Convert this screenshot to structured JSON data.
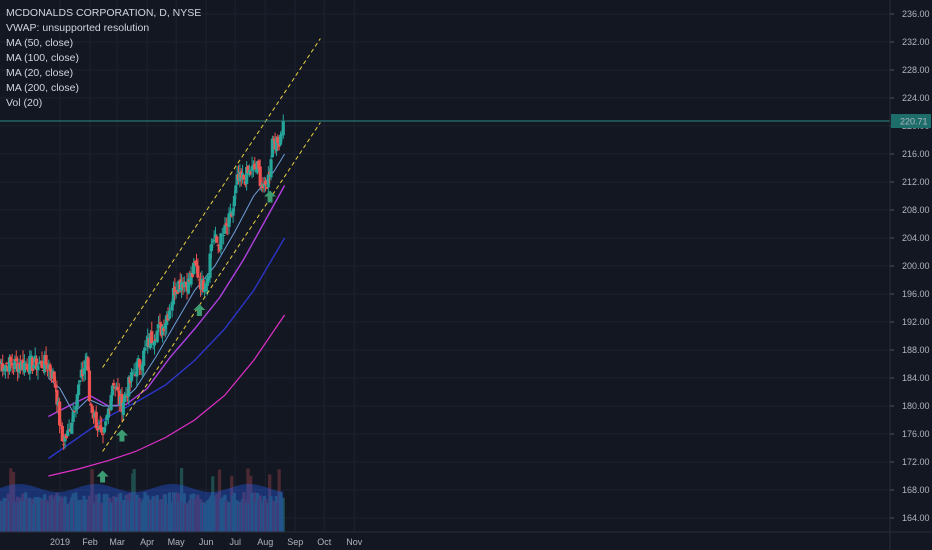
{
  "header": {
    "title": "MCDONALDS CORPORATION, D, NYSE",
    "indicators": [
      "VWAP: unsupported resolution",
      "MA (50, close)",
      "MA (100, close)",
      "MA (20, close)",
      "MA (200, close)",
      "Vol (20)"
    ]
  },
  "colors": {
    "background": "#131722",
    "up": "#26a69a",
    "down": "#ef5350",
    "ma20": "#6e9fd8",
    "ma50": "#b040e0",
    "ma100": "#2c35c8",
    "ma200": "#e030c8",
    "channel": "#e8d040",
    "price_line": "#2b8a86",
    "arrow": "#3d9b72"
  },
  "chart_data": {
    "type": "candlestick",
    "title": "MCDONALDS CORPORATION, D, NYSE",
    "ylim": [
      162,
      238
    ],
    "y_ticks": [
      "164.00",
      "168.00",
      "172.00",
      "176.00",
      "180.00",
      "184.00",
      "188.00",
      "192.00",
      "196.00",
      "200.00",
      "204.00",
      "208.00",
      "212.00",
      "216.00",
      "220.00",
      "224.00",
      "228.00",
      "232.00",
      "236.00"
    ],
    "x_ticks": [
      "2019",
      "Feb",
      "Mar",
      "Apr",
      "May",
      "Jun",
      "Jul",
      "Aug",
      "Sep",
      "Oct",
      "Nov"
    ],
    "last_price": "220.71",
    "close_path": [
      [
        "2018-12-20",
        186.0
      ],
      [
        "2018-12-27",
        183.5
      ],
      [
        "2019-01-03",
        175.0
      ],
      [
        "2019-01-10",
        176.0
      ],
      [
        "2019-01-17",
        181.0
      ],
      [
        "2019-01-24",
        184.5
      ],
      [
        "2019-01-29",
        187.5
      ],
      [
        "2019-01-31",
        181.0
      ],
      [
        "2019-02-07",
        178.0
      ],
      [
        "2019-02-14",
        174.5
      ],
      [
        "2019-02-20",
        179.5
      ],
      [
        "2019-02-25",
        184.0
      ],
      [
        "2019-03-05",
        180.0
      ],
      [
        "2019-03-12",
        182.5
      ],
      [
        "2019-03-19",
        185.0
      ],
      [
        "2019-03-26",
        186.5
      ],
      [
        "2019-04-02",
        189.0
      ],
      [
        "2019-04-09",
        190.5
      ],
      [
        "2019-04-16",
        191.0
      ],
      [
        "2019-04-23",
        193.5
      ],
      [
        "2019-04-30",
        197.0
      ],
      [
        "2019-05-07",
        198.0
      ],
      [
        "2019-05-14",
        197.5
      ],
      [
        "2019-05-21",
        200.0
      ],
      [
        "2019-05-28",
        197.0
      ],
      [
        "2019-06-03",
        199.0
      ],
      [
        "2019-06-07",
        204.0
      ],
      [
        "2019-06-14",
        203.0
      ],
      [
        "2019-06-21",
        205.0
      ],
      [
        "2019-06-28",
        207.5
      ],
      [
        "2019-07-03",
        212.0
      ],
      [
        "2019-07-10",
        212.5
      ],
      [
        "2019-07-17",
        213.5
      ],
      [
        "2019-07-24",
        214.0
      ],
      [
        "2019-07-31",
        210.5
      ],
      [
        "2019-08-05",
        213.0
      ],
      [
        "2019-08-09",
        219.0
      ],
      [
        "2019-08-13",
        217.0
      ],
      [
        "2019-08-20",
        220.71
      ]
    ],
    "ma20": [
      [
        "2018-12-20",
        184.0
      ],
      [
        "2019-01-01",
        182.5
      ],
      [
        "2019-01-15",
        179.0
      ],
      [
        "2019-01-30",
        181.0
      ],
      [
        "2019-02-15",
        180.0
      ],
      [
        "2019-03-01",
        180.0
      ],
      [
        "2019-03-20",
        182.5
      ],
      [
        "2019-04-10",
        187.0
      ],
      [
        "2019-05-01",
        192.0
      ],
      [
        "2019-05-20",
        196.5
      ],
      [
        "2019-06-10",
        200.0
      ],
      [
        "2019-07-01",
        205.0
      ],
      [
        "2019-07-20",
        210.0
      ],
      [
        "2019-08-10",
        213.5
      ],
      [
        "2019-08-21",
        216.0
      ]
    ],
    "ma50": [
      [
        "2018-12-20",
        178.5
      ],
      [
        "2019-01-10",
        180.0
      ],
      [
        "2019-02-01",
        181.5
      ],
      [
        "2019-02-20",
        180.0
      ],
      [
        "2019-03-10",
        180.2
      ],
      [
        "2019-04-01",
        182.5
      ],
      [
        "2019-04-25",
        187.0
      ],
      [
        "2019-05-20",
        191.0
      ],
      [
        "2019-06-15",
        195.5
      ],
      [
        "2019-07-10",
        201.0
      ],
      [
        "2019-08-01",
        206.5
      ],
      [
        "2019-08-21",
        211.5
      ]
    ],
    "ma100": [
      [
        "2018-12-20",
        172.5
      ],
      [
        "2019-01-20",
        175.5
      ],
      [
        "2019-02-20",
        178.5
      ],
      [
        "2019-03-20",
        180.5
      ],
      [
        "2019-04-20",
        183.0
      ],
      [
        "2019-05-20",
        186.5
      ],
      [
        "2019-06-20",
        191.0
      ],
      [
        "2019-07-20",
        196.5
      ],
      [
        "2019-08-21",
        204.0
      ]
    ],
    "ma200": [
      [
        "2018-12-20",
        170.0
      ],
      [
        "2019-01-20",
        171.0
      ],
      [
        "2019-02-20",
        172.2
      ],
      [
        "2019-03-20",
        173.5
      ],
      [
        "2019-04-20",
        175.5
      ],
      [
        "2019-05-20",
        178.0
      ],
      [
        "2019-06-20",
        181.5
      ],
      [
        "2019-07-20",
        186.5
      ],
      [
        "2019-08-21",
        193.0
      ]
    ],
    "channel_lines": [
      [
        [
          "2019-02-14",
          185.5
        ],
        [
          "2019-09-27",
          232.5
        ]
      ],
      [
        [
          "2019-02-14",
          173.5
        ],
        [
          "2019-09-27",
          220.5
        ]
      ]
    ],
    "support_markers": [
      "2019-02-14",
      "2019-03-06",
      "2019-05-25",
      "2019-08-06"
    ],
    "volume_level_fraction": 0.55
  }
}
